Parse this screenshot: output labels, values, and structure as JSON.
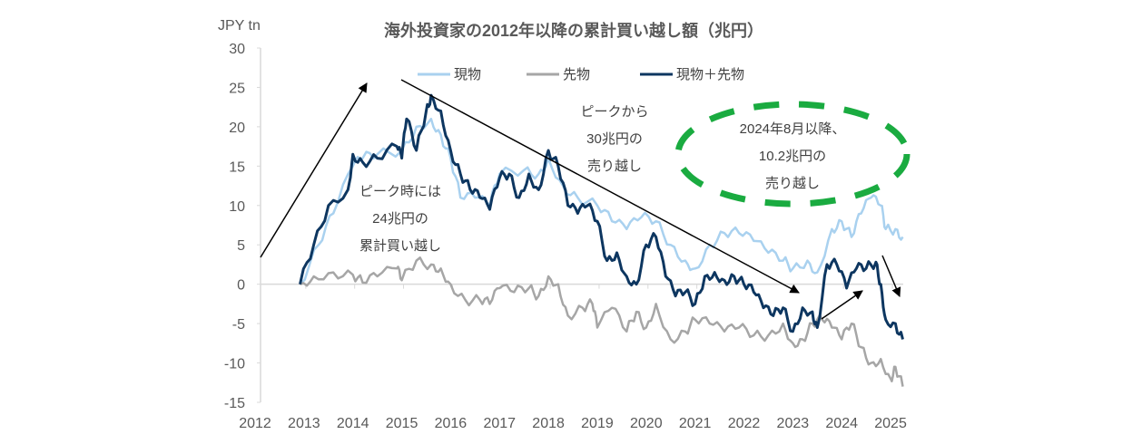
{
  "chart_data": {
    "type": "line",
    "title": "海外投資家の2012年以降の累計買い越し額（兆円）",
    "ylabel": "JPY tn",
    "xlabel": "",
    "ylim": [
      -15,
      30
    ],
    "yticks": [
      30,
      25,
      20,
      15,
      10,
      5,
      0,
      -5,
      -10,
      -15
    ],
    "xlim": [
      2012,
      2025.4
    ],
    "xticks": [
      2012,
      2013,
      2014,
      2015,
      2016,
      2017,
      2018,
      2019,
      2020,
      2021,
      2022,
      2023,
      2024,
      2025
    ],
    "legend_position": "top-center",
    "series": [
      {
        "name": "現物",
        "color": "#a9d1ef",
        "points": [
          [
            2012.92,
            0
          ],
          [
            2013.3,
            5
          ],
          [
            2013.6,
            9
          ],
          [
            2014.0,
            15
          ],
          [
            2014.2,
            16
          ],
          [
            2014.5,
            16.5
          ],
          [
            2015.0,
            17
          ],
          [
            2015.3,
            20
          ],
          [
            2015.6,
            21
          ],
          [
            2015.8,
            19
          ],
          [
            2016.0,
            16
          ],
          [
            2016.2,
            11
          ],
          [
            2016.5,
            11
          ],
          [
            2016.8,
            10
          ],
          [
            2017.0,
            14
          ],
          [
            2017.5,
            14.5
          ],
          [
            2017.8,
            14
          ],
          [
            2018.0,
            16
          ],
          [
            2018.3,
            12.5
          ],
          [
            2018.6,
            11
          ],
          [
            2019.0,
            10
          ],
          [
            2019.3,
            8
          ],
          [
            2019.6,
            7
          ],
          [
            2019.9,
            8.5
          ],
          [
            2020.2,
            8
          ],
          [
            2020.5,
            5
          ],
          [
            2020.8,
            3
          ],
          [
            2021.0,
            2
          ],
          [
            2021.3,
            5
          ],
          [
            2021.6,
            6.5
          ],
          [
            2021.9,
            6.5
          ],
          [
            2022.2,
            5.5
          ],
          [
            2022.5,
            4
          ],
          [
            2022.8,
            3
          ],
          [
            2023.0,
            2
          ],
          [
            2023.3,
            3
          ],
          [
            2023.5,
            1.5
          ],
          [
            2023.8,
            7
          ],
          [
            2024.0,
            8
          ],
          [
            2024.2,
            6
          ],
          [
            2024.4,
            9
          ],
          [
            2024.6,
            11
          ],
          [
            2024.8,
            10
          ],
          [
            2024.9,
            7
          ],
          [
            2025.1,
            7
          ],
          [
            2025.25,
            6
          ]
        ]
      },
      {
        "name": "先物",
        "color": "#a6a6a6",
        "points": [
          [
            2012.92,
            0
          ],
          [
            2013.2,
            1
          ],
          [
            2013.6,
            1.5
          ],
          [
            2014.0,
            1.2
          ],
          [
            2014.2,
            0.2
          ],
          [
            2014.5,
            1
          ],
          [
            2014.9,
            2
          ],
          [
            2015.0,
            0.5
          ],
          [
            2015.3,
            3
          ],
          [
            2015.6,
            2.5
          ],
          [
            2015.8,
            2
          ],
          [
            2016.0,
            0
          ],
          [
            2016.3,
            -2
          ],
          [
            2016.6,
            -2
          ],
          [
            2016.8,
            -2.5
          ],
          [
            2017.0,
            -0.5
          ],
          [
            2017.3,
            -1
          ],
          [
            2017.6,
            -0.5
          ],
          [
            2017.8,
            -1.5
          ],
          [
            2018.0,
            1
          ],
          [
            2018.2,
            0
          ],
          [
            2018.4,
            -4
          ],
          [
            2018.7,
            -3
          ],
          [
            2018.9,
            -2.5
          ],
          [
            2019.0,
            -5.5
          ],
          [
            2019.3,
            -3
          ],
          [
            2019.6,
            -6
          ],
          [
            2019.8,
            -3.5
          ],
          [
            2020.0,
            -5.5
          ],
          [
            2020.2,
            -2.5
          ],
          [
            2020.5,
            -7
          ],
          [
            2020.8,
            -6
          ],
          [
            2021.0,
            -4.5
          ],
          [
            2021.3,
            -5
          ],
          [
            2021.6,
            -6
          ],
          [
            2021.9,
            -5.5
          ],
          [
            2022.2,
            -6.5
          ],
          [
            2022.5,
            -6.5
          ],
          [
            2022.8,
            -5
          ],
          [
            2023.0,
            -7.5
          ],
          [
            2023.2,
            -7
          ],
          [
            2023.4,
            -5
          ],
          [
            2023.6,
            -4.5
          ],
          [
            2023.8,
            -5.5
          ],
          [
            2024.0,
            -7
          ],
          [
            2024.2,
            -5
          ],
          [
            2024.4,
            -8
          ],
          [
            2024.6,
            -10
          ],
          [
            2024.8,
            -9.5
          ],
          [
            2025.0,
            -12
          ],
          [
            2025.1,
            -10.5
          ],
          [
            2025.25,
            -13
          ]
        ]
      },
      {
        "name": "現物＋先物",
        "color": "#0d3660",
        "points": [
          [
            2012.92,
            0
          ],
          [
            2013.2,
            5
          ],
          [
            2013.5,
            10
          ],
          [
            2013.9,
            12
          ],
          [
            2014.0,
            16.5
          ],
          [
            2014.2,
            15.5
          ],
          [
            2014.5,
            16
          ],
          [
            2014.9,
            17.5
          ],
          [
            2015.0,
            16
          ],
          [
            2015.1,
            21
          ],
          [
            2015.3,
            17
          ],
          [
            2015.5,
            22
          ],
          [
            2015.6,
            24
          ],
          [
            2015.8,
            22
          ],
          [
            2016.0,
            17
          ],
          [
            2016.2,
            14
          ],
          [
            2016.4,
            12
          ],
          [
            2016.6,
            11
          ],
          [
            2016.8,
            9.5
          ],
          [
            2017.0,
            13.5
          ],
          [
            2017.2,
            14
          ],
          [
            2017.4,
            11
          ],
          [
            2017.6,
            14
          ],
          [
            2017.8,
            12
          ],
          [
            2018.0,
            17
          ],
          [
            2018.2,
            15
          ],
          [
            2018.4,
            10
          ],
          [
            2018.6,
            9
          ],
          [
            2018.8,
            10
          ],
          [
            2019.0,
            8
          ],
          [
            2019.2,
            3
          ],
          [
            2019.4,
            4
          ],
          [
            2019.6,
            1
          ],
          [
            2019.8,
            0
          ],
          [
            2020.0,
            5
          ],
          [
            2020.2,
            6
          ],
          [
            2020.4,
            1
          ],
          [
            2020.6,
            -1.5
          ],
          [
            2020.8,
            -1
          ],
          [
            2021.0,
            -2.5
          ],
          [
            2021.2,
            1
          ],
          [
            2021.4,
            1.5
          ],
          [
            2021.6,
            0.5
          ],
          [
            2021.8,
            1
          ],
          [
            2022.0,
            0
          ],
          [
            2022.2,
            -1
          ],
          [
            2022.4,
            -3
          ],
          [
            2022.6,
            -4
          ],
          [
            2022.8,
            -3
          ],
          [
            2023.0,
            -6
          ],
          [
            2023.2,
            -3
          ],
          [
            2023.4,
            -3.5
          ],
          [
            2023.5,
            -5.5
          ],
          [
            2023.7,
            2.5
          ],
          [
            2023.9,
            2.5
          ],
          [
            2024.1,
            -0.5
          ],
          [
            2024.3,
            2
          ],
          [
            2024.5,
            2
          ],
          [
            2024.7,
            2.8
          ],
          [
            2024.8,
            0
          ],
          [
            2024.9,
            -4.5
          ],
          [
            2025.1,
            -5
          ],
          [
            2025.25,
            -7
          ]
        ]
      }
    ],
    "annotations": [
      {
        "id": "peak",
        "lines": [
          "ピーク時には",
          "24兆円の",
          "累計買い越し"
        ]
      },
      {
        "id": "decline",
        "lines": [
          "ピークから",
          "30兆円の",
          "売り越し"
        ]
      },
      {
        "id": "recent",
        "lines": [
          "2024年8月以降、",
          "10.2兆円の",
          "売り越し"
        ],
        "highlight_color": "#1aab40"
      }
    ]
  }
}
